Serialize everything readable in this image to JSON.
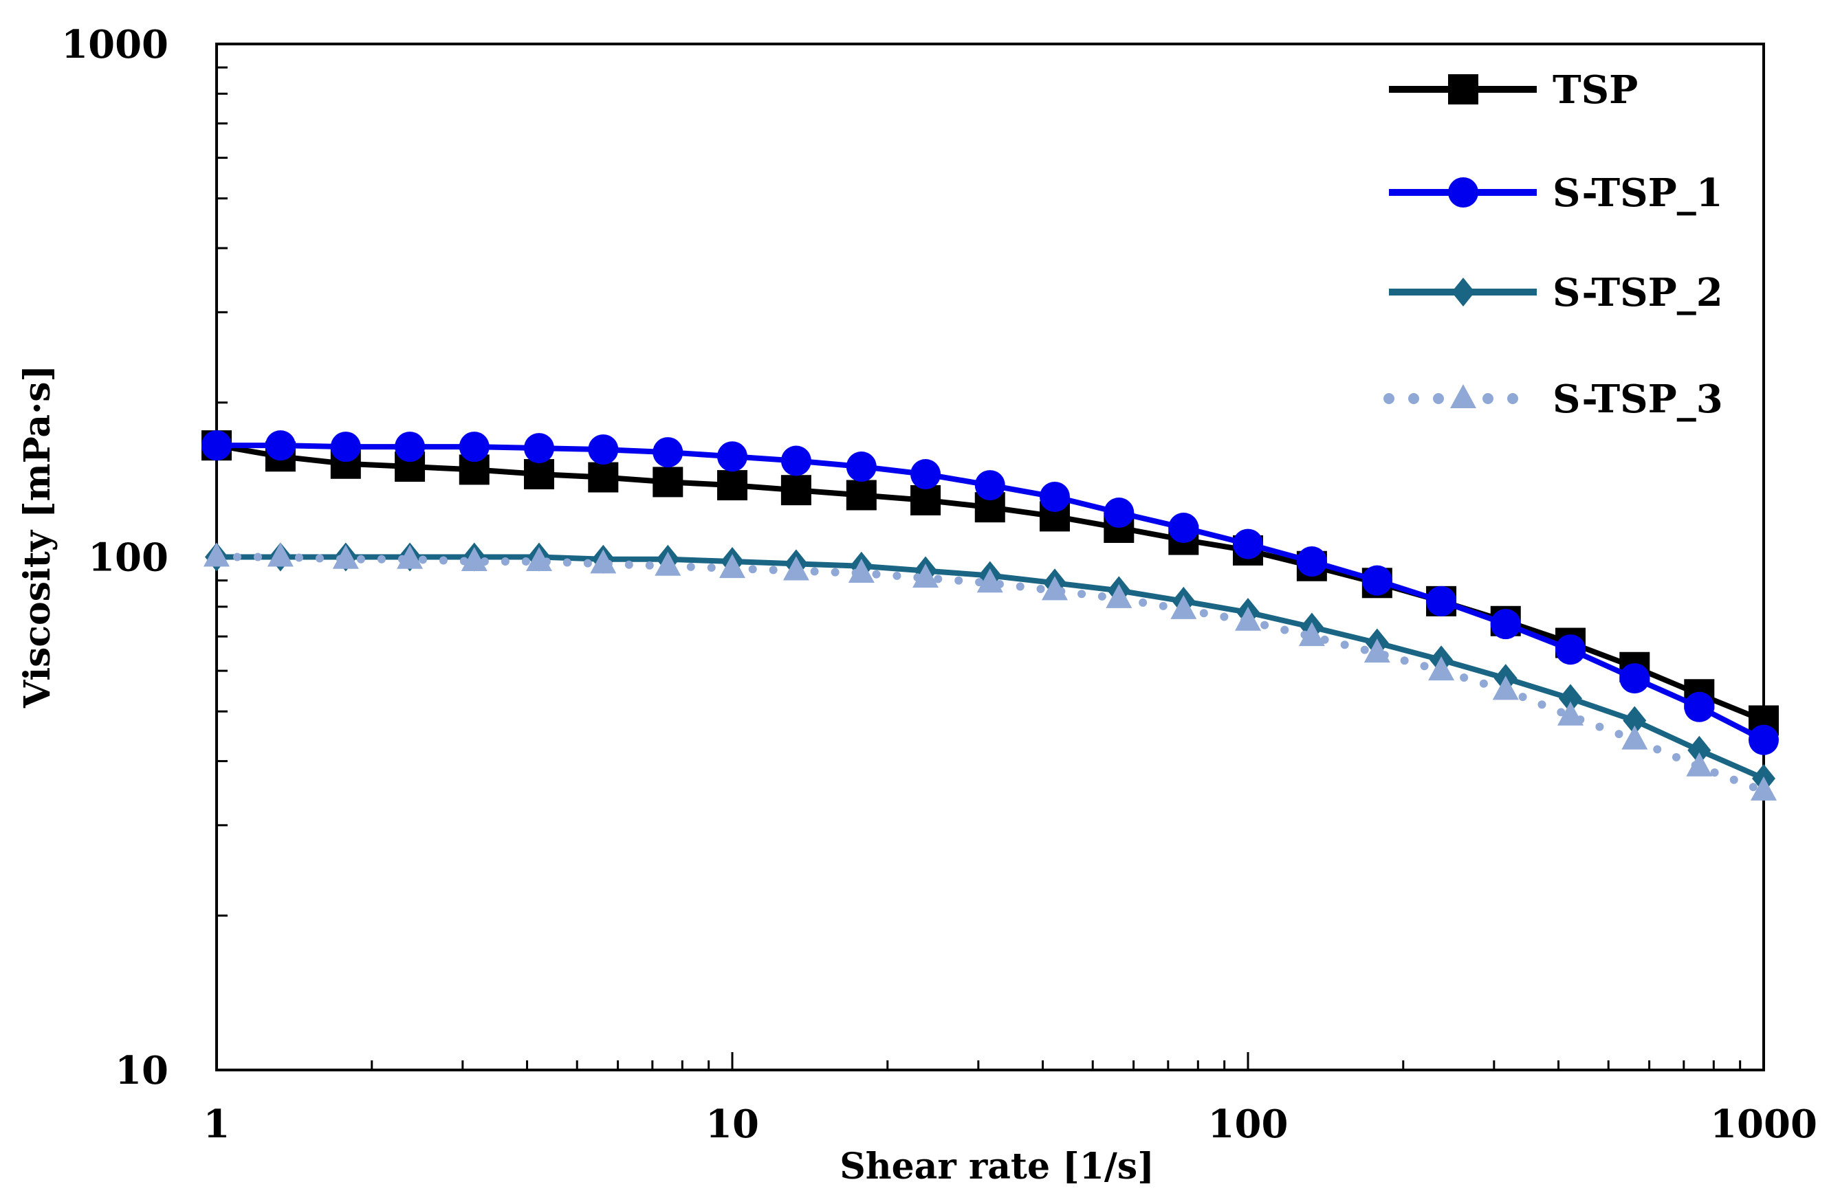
{
  "chart_data": {
    "type": "line",
    "title": "",
    "xlabel": "Shear rate [1/s]",
    "ylabel": "Viscosity [mPa·s]",
    "xscale": "log",
    "yscale": "log",
    "xlim": [
      1,
      1000
    ],
    "ylim": [
      10,
      1000
    ],
    "xticks": [
      1,
      10,
      100,
      1000
    ],
    "xtick_labels": [
      "1",
      "10",
      "100",
      "1000"
    ],
    "yticks": [
      10,
      100,
      1000
    ],
    "ytick_labels": [
      "10",
      "100",
      "1000"
    ],
    "grid": false,
    "legend_position": "top-right",
    "x": [
      1,
      1.33,
      1.78,
      2.37,
      3.16,
      4.22,
      5.62,
      7.5,
      10,
      13.3,
      17.8,
      23.7,
      31.6,
      42.2,
      56.2,
      75,
      100,
      133,
      178,
      237,
      316,
      422,
      562,
      750,
      1000
    ],
    "series": [
      {
        "name": "TSP",
        "color": "#000000",
        "marker": "square",
        "line": "solid",
        "values": [
          165,
          157,
          152,
          150,
          148,
          145,
          143,
          140,
          138,
          135,
          132,
          129,
          125,
          120,
          114,
          108,
          103,
          96,
          89,
          82,
          75,
          68,
          61,
          54,
          48
        ]
      },
      {
        "name": "S-TSP_1",
        "color": "#0000ee",
        "marker": "circle",
        "line": "solid",
        "values": [
          165,
          165,
          164,
          164,
          164,
          163,
          162,
          160,
          157,
          154,
          150,
          145,
          138,
          131,
          122,
          114,
          106,
          98,
          90,
          82,
          74,
          66,
          58,
          51,
          44
        ]
      },
      {
        "name": "S-TSP_2",
        "color": "#1b6584",
        "marker": "diamond",
        "line": "solid",
        "values": [
          100,
          100,
          100,
          100,
          100,
          100,
          99,
          99,
          98,
          97,
          96,
          94,
          92,
          89,
          86,
          82,
          78,
          73,
          68,
          63,
          58,
          53,
          48,
          42,
          37
        ]
      },
      {
        "name": "S-TSP_3",
        "color": "#8fa8d6",
        "marker": "triangle",
        "line": "dotted",
        "values": [
          100,
          100,
          99,
          99,
          98,
          98,
          97,
          96,
          95,
          94,
          93,
          91,
          89,
          86,
          83,
          79,
          75,
          70,
          65,
          60,
          55,
          49,
          44,
          39,
          35
        ]
      }
    ]
  }
}
